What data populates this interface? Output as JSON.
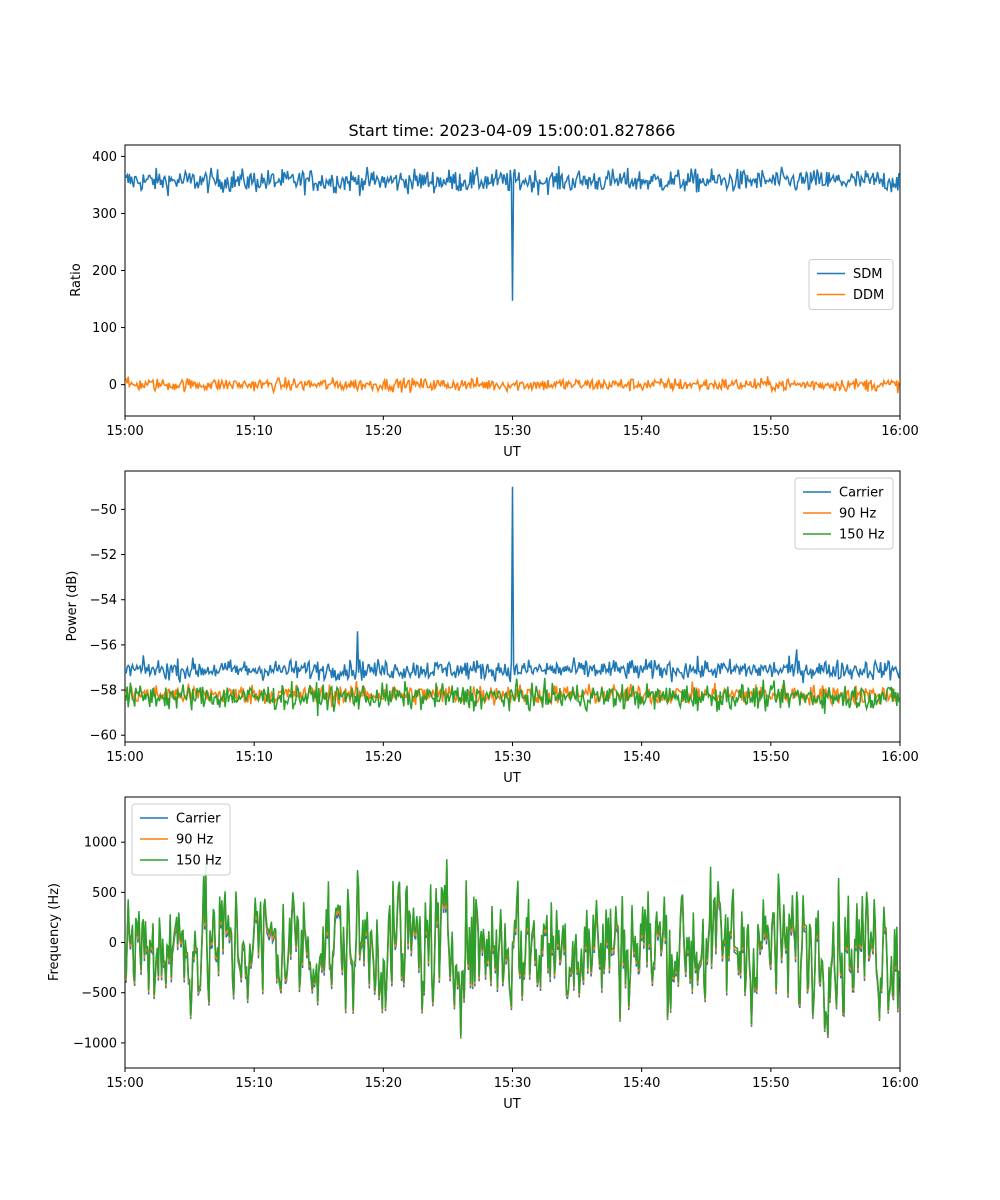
{
  "chart_data": [
    {
      "type": "line",
      "title": "Start time: 2023-04-09 15:00:01.827866",
      "xlabel": "UT",
      "ylabel": "Ratio",
      "xlim": [
        "15:00",
        "16:00"
      ],
      "ylim": [
        -55,
        420
      ],
      "x_ticks": [
        "15:00",
        "15:10",
        "15:20",
        "15:30",
        "15:40",
        "15:50",
        "16:00"
      ],
      "y_ticks": [
        0,
        100,
        200,
        300,
        400
      ],
      "legend_position": "center-right",
      "series": [
        {
          "name": "SDM",
          "color": "#1f77b4",
          "baseline": 357,
          "noise": 16,
          "spikes": [
            {
              "x": "15:30",
              "value": 147
            }
          ]
        },
        {
          "name": "DDM",
          "color": "#ff7f0e",
          "baseline": 0,
          "noise": 9
        }
      ]
    },
    {
      "type": "line",
      "title": "",
      "xlabel": "UT",
      "ylabel": "Power (dB)",
      "xlim": [
        "15:00",
        "16:00"
      ],
      "ylim": [
        -60.3,
        -48.3
      ],
      "x_ticks": [
        "15:00",
        "15:10",
        "15:20",
        "15:30",
        "15:40",
        "15:50",
        "16:00"
      ],
      "y_ticks": [
        -50,
        -52,
        -54,
        -56,
        -58,
        -60
      ],
      "legend_position": "upper-right",
      "series": [
        {
          "name": "Carrier",
          "color": "#1f77b4",
          "baseline": -57.1,
          "noise": 0.35,
          "spikes": [
            {
              "x": "15:30",
              "value": -49.0
            },
            {
              "x": "15:18",
              "value": -55.4
            },
            {
              "x": "15:52",
              "value": -56.2
            }
          ]
        },
        {
          "name": "90 Hz",
          "color": "#ff7f0e",
          "baseline": -58.2,
          "noise": 0.35
        },
        {
          "name": "150 Hz",
          "color": "#2ca02c",
          "baseline": -58.3,
          "noise": 0.45
        }
      ]
    },
    {
      "type": "line",
      "title": "",
      "xlabel": "UT",
      "ylabel": "Frequency (Hz)",
      "xlim": [
        "15:00",
        "16:00"
      ],
      "ylim": [
        -1250,
        1450
      ],
      "x_ticks": [
        "15:00",
        "15:10",
        "15:20",
        "15:30",
        "15:40",
        "15:50",
        "16:00"
      ],
      "y_ticks": [
        1000,
        500,
        0,
        -500,
        -1000
      ],
      "legend_position": "upper-left",
      "series": [
        {
          "name": "Carrier",
          "color": "#1f77b4",
          "baseline": -60,
          "noise": 420
        },
        {
          "name": "90 Hz",
          "color": "#ff7f0e",
          "baseline": -30,
          "noise": 420
        },
        {
          "name": "150 Hz",
          "color": "#2ca02c",
          "baseline": 0,
          "noise": 420
        }
      ]
    }
  ]
}
